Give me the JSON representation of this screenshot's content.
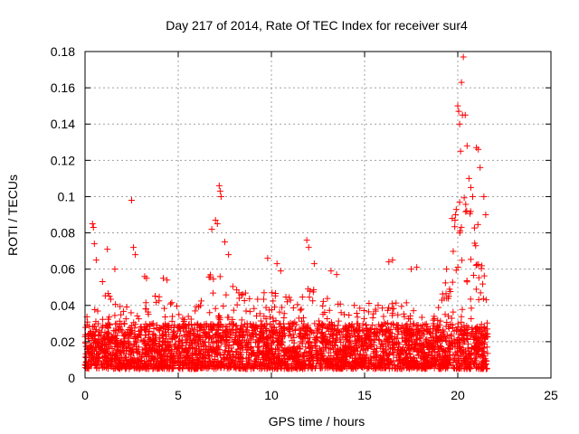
{
  "chart_data": {
    "type": "scatter",
    "title": "Day 217 of 2014, Rate Of TEC Index for receiver sur4",
    "xlabel": "GPS time / hours",
    "ylabel": "ROTI / TECUs",
    "xlim": [
      0,
      25
    ],
    "ylim": [
      0,
      0.18
    ],
    "xticks": [
      "0",
      "5",
      "10",
      "15",
      "20",
      "25"
    ],
    "yticks": [
      "0",
      "0.02",
      "0.04",
      "0.06",
      "0.08",
      "0.1",
      "0.12",
      "0.14",
      "0.16",
      "0.18"
    ],
    "grid": true,
    "marker": "+",
    "color": "#ff0000",
    "series": [
      {
        "name": "",
        "x_range": [
          0,
          21.6
        ],
        "typical_band": [
          0.005,
          0.03
        ],
        "envelope": [
          [
            0.0,
            0.03
          ],
          [
            0.5,
            0.05
          ],
          [
            0.8,
            0.06
          ],
          [
            1.0,
            0.05
          ],
          [
            1.5,
            0.055
          ],
          [
            2.0,
            0.04
          ],
          [
            2.5,
            0.045
          ],
          [
            3.0,
            0.04
          ],
          [
            3.5,
            0.05
          ],
          [
            4.0,
            0.045
          ],
          [
            5.0,
            0.04
          ],
          [
            6.0,
            0.04
          ],
          [
            6.5,
            0.05
          ],
          [
            7.0,
            0.07
          ],
          [
            7.5,
            0.055
          ],
          [
            8.0,
            0.05
          ],
          [
            9.0,
            0.045
          ],
          [
            10.0,
            0.05
          ],
          [
            11.0,
            0.045
          ],
          [
            12.0,
            0.05
          ],
          [
            13.0,
            0.045
          ],
          [
            14.0,
            0.04
          ],
          [
            15.0,
            0.04
          ],
          [
            16.0,
            0.045
          ],
          [
            16.5,
            0.05
          ],
          [
            17.0,
            0.045
          ],
          [
            17.5,
            0.04
          ],
          [
            18.0,
            0.035
          ],
          [
            18.5,
            0.03
          ],
          [
            19.0,
            0.04
          ],
          [
            19.5,
            0.06
          ],
          [
            20.0,
            0.1
          ],
          [
            20.5,
            0.1
          ],
          [
            21.0,
            0.09
          ],
          [
            21.3,
            0.07
          ],
          [
            21.6,
            0.04
          ]
        ],
        "outliers": [
          [
            0.4,
            0.085
          ],
          [
            0.45,
            0.083
          ],
          [
            0.5,
            0.074
          ],
          [
            0.6,
            0.065
          ],
          [
            1.2,
            0.071
          ],
          [
            1.6,
            0.06
          ],
          [
            2.5,
            0.098
          ],
          [
            2.6,
            0.072
          ],
          [
            2.7,
            0.068
          ],
          [
            3.2,
            0.056
          ],
          [
            3.3,
            0.055
          ],
          [
            4.2,
            0.055
          ],
          [
            4.4,
            0.054
          ],
          [
            6.8,
            0.082
          ],
          [
            7.0,
            0.087
          ],
          [
            7.1,
            0.085
          ],
          [
            7.2,
            0.106
          ],
          [
            7.25,
            0.103
          ],
          [
            7.3,
            0.1
          ],
          [
            7.5,
            0.075
          ],
          [
            7.7,
            0.068
          ],
          [
            9.8,
            0.066
          ],
          [
            10.3,
            0.063
          ],
          [
            10.5,
            0.059
          ],
          [
            11.9,
            0.076
          ],
          [
            12.0,
            0.072
          ],
          [
            12.3,
            0.063
          ],
          [
            13.2,
            0.059
          ],
          [
            13.5,
            0.057
          ],
          [
            16.3,
            0.064
          ],
          [
            16.5,
            0.065
          ],
          [
            17.5,
            0.06
          ],
          [
            17.8,
            0.061
          ],
          [
            19.4,
            0.06
          ],
          [
            19.7,
            0.088
          ],
          [
            19.85,
            0.087
          ],
          [
            20.0,
            0.15
          ],
          [
            20.05,
            0.147
          ],
          [
            20.1,
            0.14
          ],
          [
            20.15,
            0.125
          ],
          [
            20.2,
            0.163
          ],
          [
            20.25,
            0.145
          ],
          [
            20.3,
            0.177
          ],
          [
            20.4,
            0.145
          ],
          [
            20.5,
            0.128
          ],
          [
            20.6,
            0.11
          ],
          [
            20.7,
            0.105
          ],
          [
            20.8,
            0.1
          ],
          [
            21.0,
            0.127
          ],
          [
            21.1,
            0.126
          ],
          [
            21.2,
            0.116
          ],
          [
            21.4,
            0.1
          ],
          [
            21.5,
            0.09
          ]
        ]
      }
    ]
  }
}
